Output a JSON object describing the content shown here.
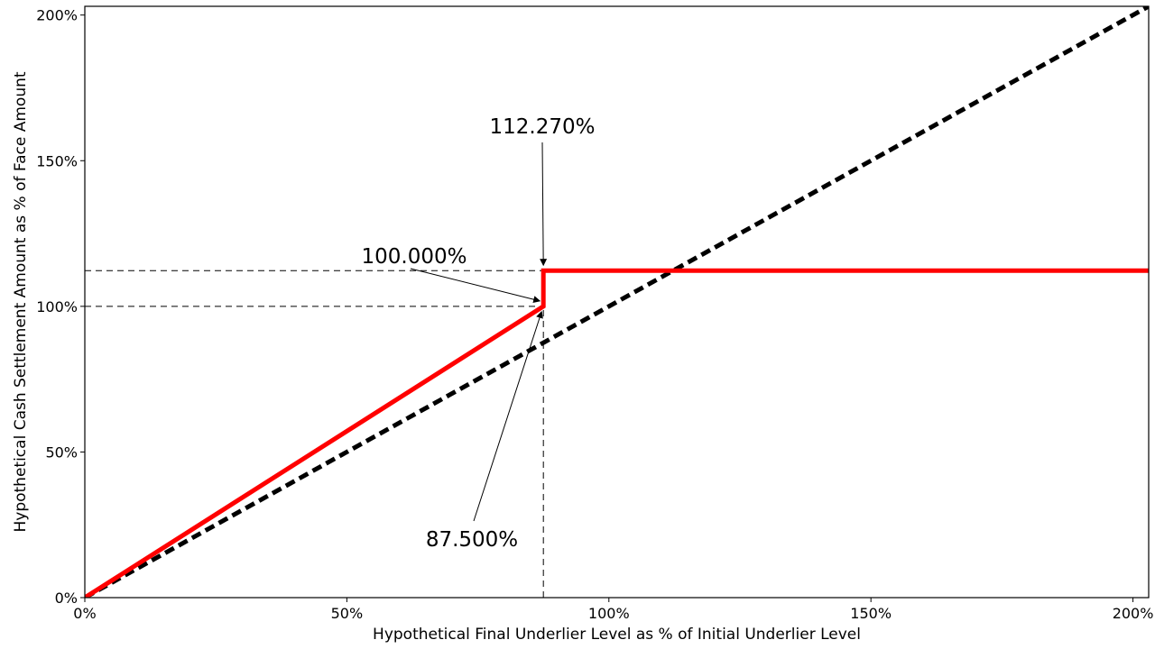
{
  "chart_data": {
    "type": "line",
    "title": "",
    "xlabel": "Hypothetical Final Underlier Level as % of Initial Underlier Level",
    "ylabel": "Hypothetical Cash Settlement Amount as % of Face Amount",
    "xlim": [
      0,
      203
    ],
    "ylim": [
      0,
      203
    ],
    "x_ticks": [
      0,
      50,
      100,
      150,
      200
    ],
    "x_tick_labels": [
      "0%",
      "50%",
      "100%",
      "150%",
      "200%"
    ],
    "y_ticks": [
      0,
      50,
      100,
      150,
      200
    ],
    "y_tick_labels": [
      "0%",
      "50%",
      "100%",
      "150%",
      "200%"
    ],
    "grid": false,
    "legend": "none",
    "series": [
      {
        "style": "dashed",
        "color": "#000000",
        "x": [
          0,
          203
        ],
        "y": [
          0,
          203
        ]
      },
      {
        "style": "solid",
        "color": "#ff0000",
        "x": [
          0,
          87.5,
          87.5,
          203
        ],
        "y": [
          0,
          100,
          112.27,
          112.27
        ]
      }
    ],
    "reference_lines": [
      {
        "orientation": "horizontal",
        "y": 112.27,
        "x_from": 0,
        "x_to": 87.5
      },
      {
        "orientation": "horizontal",
        "y": 100,
        "x_from": 0,
        "x_to": 87.5
      },
      {
        "orientation": "vertical",
        "x": 87.5,
        "y_from": 0,
        "y_to": 100
      }
    ],
    "annotations": [
      {
        "text": "112.270%",
        "target": [
          87.5,
          112.27
        ]
      },
      {
        "text": "100.000%",
        "target": [
          87.5,
          100
        ]
      },
      {
        "text": "87.500%",
        "target": [
          87.5,
          100
        ]
      }
    ]
  }
}
